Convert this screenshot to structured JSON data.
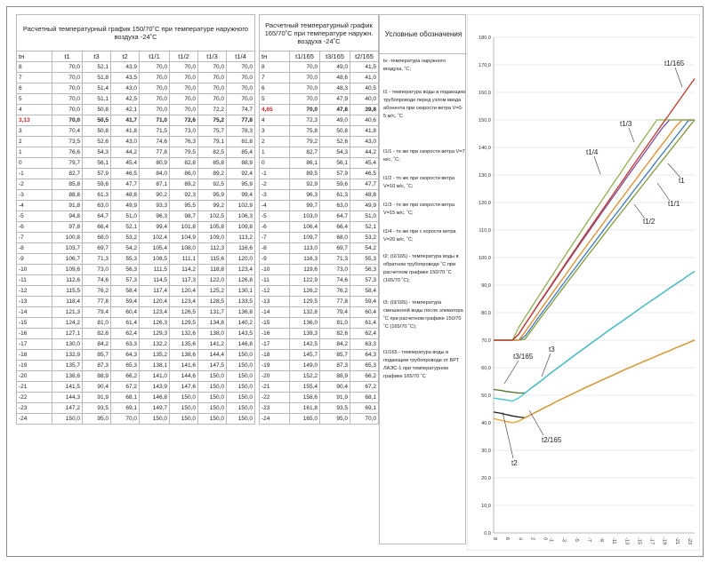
{
  "table1": {
    "title": "Расчетный температурный график 150/70˚С при температуре наружного воздуха -24˚С",
    "headers": [
      "tн",
      "t1",
      "t3",
      "t2",
      "t1/1",
      "t1/2",
      "t1/3",
      "t1/4"
    ],
    "rows": [
      [
        "8",
        "70,0",
        "52,1",
        "43,9",
        "70,0",
        "70,0",
        "70,0",
        "70,0"
      ],
      [
        "7",
        "70,0",
        "51,8",
        "43,5",
        "70,0",
        "70,0",
        "70,0",
        "70,0"
      ],
      [
        "6",
        "70,0",
        "51,4",
        "43,0",
        "70,0",
        "70,0",
        "70,0",
        "70,0"
      ],
      [
        "5",
        "70,0",
        "51,1",
        "42,5",
        "70,0",
        "70,0",
        "70,0",
        "70,0"
      ],
      [
        "4",
        "70,0",
        "50,8",
        "42,1",
        "70,0",
        "70,0",
        "72,2",
        "74,7"
      ],
      [
        "3,13",
        "70,0",
        "50,5",
        "41,7",
        "71,0",
        "72,6",
        "75,2",
        "77,8"
      ],
      [
        "3",
        "70,4",
        "50,8",
        "41,8",
        "71,5",
        "73,0",
        "75,7",
        "78,3"
      ],
      [
        "2",
        "73,5",
        "52,6",
        "43,0",
        "74,6",
        "76,3",
        "79,1",
        "81,8"
      ],
      [
        "1",
        "76,6",
        "54,3",
        "44,2",
        "77,8",
        "79,5",
        "82,5",
        "85,4"
      ],
      [
        "0",
        "79,7",
        "56,1",
        "45,4",
        "80,9",
        "82,8",
        "85,8",
        "88,9"
      ],
      [
        "-1",
        "82,7",
        "57,9",
        "46,5",
        "84,0",
        "86,0",
        "89,2",
        "92,4"
      ],
      [
        "-2",
        "85,8",
        "59,6",
        "47,7",
        "87,1",
        "89,2",
        "92,5",
        "95,9"
      ],
      [
        "-3",
        "88,8",
        "61,3",
        "48,8",
        "90,2",
        "92,3",
        "95,9",
        "99,4"
      ],
      [
        "-4",
        "91,8",
        "63,0",
        "49,9",
        "93,3",
        "95,5",
        "99,2",
        "102,9"
      ],
      [
        "-5",
        "94,8",
        "64,7",
        "51,0",
        "96,3",
        "98,7",
        "102,5",
        "106,3"
      ],
      [
        "-6",
        "97,8",
        "66,4",
        "52,1",
        "99,4",
        "101,8",
        "105,8",
        "109,8"
      ],
      [
        "-7",
        "100,8",
        "68,0",
        "53,2",
        "102,4",
        "104,9",
        "109,0",
        "113,2"
      ],
      [
        "-8",
        "103,7",
        "69,7",
        "54,2",
        "105,4",
        "108,0",
        "112,3",
        "116,6"
      ],
      [
        "-9",
        "106,7",
        "71,3",
        "55,3",
        "108,5",
        "111,1",
        "115,6",
        "120,0"
      ],
      [
        "-10",
        "109,6",
        "73,0",
        "56,3",
        "111,5",
        "114,2",
        "118,8",
        "123,4"
      ],
      [
        "-11",
        "112,6",
        "74,6",
        "57,3",
        "114,5",
        "117,3",
        "122,0",
        "126,8"
      ],
      [
        "-12",
        "115,5",
        "76,2",
        "58,4",
        "117,4",
        "120,4",
        "125,2",
        "130,1"
      ],
      [
        "-13",
        "118,4",
        "77,8",
        "59,4",
        "120,4",
        "123,4",
        "128,5",
        "133,5"
      ],
      [
        "-14",
        "121,3",
        "79,4",
        "60,4",
        "123,4",
        "126,5",
        "131,7",
        "136,8"
      ],
      [
        "-15",
        "124,2",
        "81,0",
        "61,4",
        "126,3",
        "129,5",
        "134,8",
        "140,2"
      ],
      [
        "-16",
        "127,1",
        "82,6",
        "62,4",
        "129,3",
        "132,6",
        "138,0",
        "143,5"
      ],
      [
        "-17",
        "130,0",
        "84,2",
        "63,3",
        "132,2",
        "135,6",
        "141,2",
        "146,8"
      ],
      [
        "-18",
        "132,9",
        "85,7",
        "64,3",
        "135,2",
        "138,6",
        "144,4",
        "150,0"
      ],
      [
        "-19",
        "135,7",
        "87,3",
        "65,3",
        "138,1",
        "141,6",
        "147,5",
        "150,0"
      ],
      [
        "-20",
        "138,6",
        "88,9",
        "66,2",
        "141,0",
        "144,6",
        "150,0",
        "150,0"
      ],
      [
        "-21",
        "141,5",
        "90,4",
        "67,2",
        "143,9",
        "147,6",
        "150,0",
        "150,0"
      ],
      [
        "-22",
        "144,3",
        "91,9",
        "68,1",
        "146,8",
        "150,0",
        "150,0",
        "150,0"
      ],
      [
        "-23",
        "147,2",
        "93,5",
        "69,1",
        "149,7",
        "150,0",
        "150,0",
        "150,0"
      ],
      [
        "-24",
        "150,0",
        "95,0",
        "70,0",
        "150,0",
        "150,0",
        "150,0",
        "150,0"
      ]
    ]
  },
  "table2": {
    "title": "Расчетный температурный график 165/70˚С при температуре наружн. воздуха -24˚С",
    "headers": [
      "tн",
      "t1/165",
      "t3/165",
      "t2/165"
    ],
    "rows": [
      [
        "8",
        "70,0",
        "49,0",
        "41,5"
      ],
      [
        "7",
        "70,0",
        "48,6",
        "41,0"
      ],
      [
        "6",
        "70,0",
        "48,3",
        "40,5"
      ],
      [
        "5",
        "70,0",
        "47,9",
        "40,0"
      ],
      [
        "4,65",
        "70,0",
        "47,8",
        "39,8"
      ],
      [
        "4",
        "72,3",
        "49,0",
        "40,6"
      ],
      [
        "3",
        "75,8",
        "50,8",
        "41,8"
      ],
      [
        "2",
        "79,2",
        "52,6",
        "43,0"
      ],
      [
        "1",
        "82,7",
        "54,3",
        "44,2"
      ],
      [
        "0",
        "86,1",
        "56,1",
        "45,4"
      ],
      [
        "-1",
        "89,5",
        "57,9",
        "46,5"
      ],
      [
        "-2",
        "92,9",
        "59,6",
        "47,7"
      ],
      [
        "-3",
        "96,3",
        "61,3",
        "48,8"
      ],
      [
        "-4",
        "99,7",
        "63,0",
        "49,9"
      ],
      [
        "-5",
        "103,0",
        "64,7",
        "51,0"
      ],
      [
        "-6",
        "106,4",
        "66,4",
        "52,1"
      ],
      [
        "-7",
        "109,7",
        "68,0",
        "53,2"
      ],
      [
        "-8",
        "113,0",
        "69,7",
        "54,2"
      ],
      [
        "-9",
        "116,3",
        "71,3",
        "55,3"
      ],
      [
        "-10",
        "119,6",
        "73,0",
        "56,3"
      ],
      [
        "-11",
        "122,9",
        "74,6",
        "57,3"
      ],
      [
        "-12",
        "126,2",
        "76,2",
        "58,4"
      ],
      [
        "-13",
        "129,5",
        "77,8",
        "59,4"
      ],
      [
        "-14",
        "132,8",
        "79,4",
        "60,4"
      ],
      [
        "-15",
        "136,0",
        "81,0",
        "61,4"
      ],
      [
        "-16",
        "139,3",
        "82,6",
        "62,4"
      ],
      [
        "-17",
        "142,5",
        "84,2",
        "63,3"
      ],
      [
        "-18",
        "145,7",
        "85,7",
        "64,3"
      ],
      [
        "-19",
        "149,0",
        "87,3",
        "65,3"
      ],
      [
        "-20",
        "152,2",
        "88,9",
        "66,2"
      ],
      [
        "-21",
        "155,4",
        "90,4",
        "67,2"
      ],
      [
        "-22",
        "158,6",
        "91,9",
        "68,1"
      ],
      [
        "-23",
        "161,8",
        "93,5",
        "69,1"
      ],
      [
        "-24",
        "165,0",
        "95,0",
        "70,0"
      ]
    ]
  },
  "legend": {
    "title": "Условные обозначения",
    "items": [
      "tн -температура наружного воздуха, ˚С;",
      "t1 - температура воды в подающем трубопроводе перед узлом ввода абонента при скорости ветра V=0-5 м/с, ˚С",
      "t1/1 - то же при скорости ветра V=7 м/с, ˚С;",
      "t1/2 - то же при скорости ветра V=10 м/с, ˚С;",
      "t1/3 - то же при скорости ветра V=15 м/с, ˚С;",
      "t1/4 - то же при с корости ветра V=20 м/с, ˚С;",
      "t2; (t2/165) - температура воды в обратном трубопроводе ˚С при расчетном графике 150/70 ˚С (165/70 ˚С);",
      "t3; (t3/165) - температура смешанной воды после элеватора ˚С при расчетном графике 150/70 ˚С (165/70 ˚С);",
      "t1/165 - температура воды в подающем трубопроводе от БРТ ЛАЭС-1 при температурном графике 165/70 ˚С"
    ]
  },
  "chart_data": {
    "type": "line",
    "x": [
      8,
      7,
      6,
      5,
      4,
      3,
      2,
      1,
      0,
      -1,
      -2,
      -3,
      -4,
      -5,
      -6,
      -7,
      -8,
      -9,
      -10,
      -11,
      -12,
      -13,
      -14,
      -15,
      -16,
      -17,
      -18,
      -19,
      -20,
      -21,
      -22,
      -23,
      -24
    ],
    "ylim": [
      0,
      180
    ],
    "yticks": [
      "0,0",
      "10,0",
      "20,0",
      "30,0",
      "40,0",
      "50,0",
      "60,0",
      "70,0",
      "80,0",
      "90,0",
      "100,0",
      "110,0",
      "120,0",
      "130,0",
      "140,0",
      "150,0",
      "160,0",
      "170,0",
      "180,0"
    ],
    "xticks": [
      "8",
      "6",
      "4",
      "2",
      "0",
      "-1",
      "-3",
      "-5",
      "-7",
      "-9",
      "-11",
      "-13",
      "-15",
      "-17",
      "-19",
      "-21",
      "-23"
    ],
    "grid": true,
    "series": [
      {
        "name": "t1",
        "color": "#7d9a3c",
        "values": [
          70,
          70,
          70,
          70,
          70,
          70.4,
          73.5,
          76.6,
          79.7,
          82.7,
          85.8,
          88.8,
          91.8,
          94.8,
          97.8,
          100.8,
          103.7,
          106.7,
          109.6,
          112.6,
          115.5,
          118.4,
          121.3,
          124.2,
          127.1,
          130,
          132.9,
          135.7,
          138.6,
          141.5,
          144.3,
          147.2,
          150
        ]
      },
      {
        "name": "t1/1",
        "color": "#3d79b5",
        "values": [
          70,
          70,
          70,
          70,
          70,
          71.5,
          74.6,
          77.8,
          80.9,
          84,
          87.1,
          90.2,
          93.3,
          96.3,
          99.4,
          102.4,
          105.4,
          108.5,
          111.5,
          114.5,
          117.4,
          120.4,
          123.4,
          126.3,
          129.3,
          132.2,
          135.2,
          138.1,
          141,
          143.9,
          146.8,
          149.7,
          150
        ]
      },
      {
        "name": "t1/2",
        "color": "#e08a2a",
        "values": [
          70,
          70,
          70,
          70,
          70,
          73,
          76.3,
          79.5,
          82.8,
          86,
          89.2,
          92.3,
          95.5,
          98.7,
          101.8,
          104.9,
          108,
          111.1,
          114.2,
          117.3,
          120.4,
          123.4,
          126.5,
          129.5,
          132.6,
          135.6,
          138.6,
          141.6,
          144.6,
          147.6,
          150,
          150,
          150
        ]
      },
      {
        "name": "t1/3",
        "color": "#7a4e9e",
        "values": [
          70,
          70,
          70,
          70,
          72.2,
          75.7,
          79.1,
          82.5,
          85.8,
          89.2,
          92.5,
          95.9,
          99.2,
          102.5,
          105.8,
          109,
          112.3,
          115.6,
          118.8,
          122,
          125.2,
          128.5,
          131.7,
          134.8,
          138,
          141.2,
          144.4,
          147.5,
          150,
          150,
          150,
          150,
          150
        ]
      },
      {
        "name": "t1/4",
        "color": "#8fb052",
        "values": [
          70,
          70,
          70,
          70,
          74.7,
          78.3,
          81.8,
          85.4,
          88.9,
          92.4,
          95.9,
          99.4,
          102.9,
          106.3,
          109.8,
          113.2,
          116.6,
          120,
          123.4,
          126.8,
          130.1,
          133.5,
          136.8,
          140.2,
          143.5,
          146.8,
          150,
          150,
          150,
          150,
          150,
          150,
          150
        ]
      },
      {
        "name": "t1/165",
        "color": "#c0392b",
        "values": [
          70,
          70,
          70,
          70,
          72.3,
          75.8,
          79.2,
          82.7,
          86.1,
          89.5,
          92.9,
          96.3,
          99.7,
          103,
          106.4,
          109.7,
          113,
          116.3,
          119.6,
          122.9,
          126.2,
          129.5,
          132.8,
          136,
          139.3,
          142.5,
          145.7,
          149,
          152.2,
          155.4,
          158.6,
          161.8,
          165
        ]
      },
      {
        "name": "t3",
        "color": "#4a6f1e",
        "values": [
          52.1,
          51.8,
          51.4,
          51.1,
          50.8,
          50.8,
          52.6,
          54.3,
          56.1,
          57.9,
          59.6,
          61.3,
          63,
          64.7,
          66.4,
          68,
          69.7,
          71.3,
          73,
          74.6,
          76.2,
          77.8,
          79.4,
          81,
          82.6,
          84.2,
          85.7,
          87.3,
          88.9,
          90.4,
          91.9,
          93.5,
          95
        ]
      },
      {
        "name": "t3/165",
        "color": "#3fc1cf",
        "values": [
          49,
          48.6,
          48.3,
          47.9,
          49,
          50.8,
          52.6,
          54.3,
          56.1,
          57.9,
          59.6,
          61.3,
          63,
          64.7,
          66.4,
          68,
          69.7,
          71.3,
          73,
          74.6,
          76.2,
          77.8,
          79.4,
          81,
          82.6,
          84.2,
          85.7,
          87.3,
          88.9,
          90.4,
          91.9,
          93.5,
          95
        ]
      },
      {
        "name": "t2",
        "color": "#1d1d1d",
        "values": [
          43.9,
          43.5,
          43,
          42.5,
          42.1,
          41.8,
          43,
          44.2,
          45.4,
          46.5,
          47.7,
          48.8,
          49.9,
          51,
          52.1,
          53.2,
          54.2,
          55.3,
          56.3,
          57.3,
          58.4,
          59.4,
          60.4,
          61.4,
          62.4,
          63.3,
          64.3,
          65.3,
          66.2,
          67.2,
          68.1,
          69.1,
          70
        ]
      },
      {
        "name": "t2/165",
        "color": "#e6a12b",
        "values": [
          41.5,
          41,
          40.5,
          40,
          40.6,
          41.8,
          43,
          44.2,
          45.4,
          46.5,
          47.7,
          48.8,
          49.9,
          51,
          52.1,
          53.2,
          54.2,
          55.3,
          56.3,
          57.3,
          58.4,
          59.4,
          60.4,
          61.4,
          62.4,
          63.3,
          64.3,
          65.3,
          66.2,
          67.2,
          68.1,
          69.1,
          70
        ]
      }
    ],
    "annotations": [
      "t1/165",
      "t1/3",
      "t1/4",
      "t1",
      "t1/1",
      "t1/2",
      "t3",
      "t3/165",
      "t2/165",
      "t2"
    ]
  }
}
